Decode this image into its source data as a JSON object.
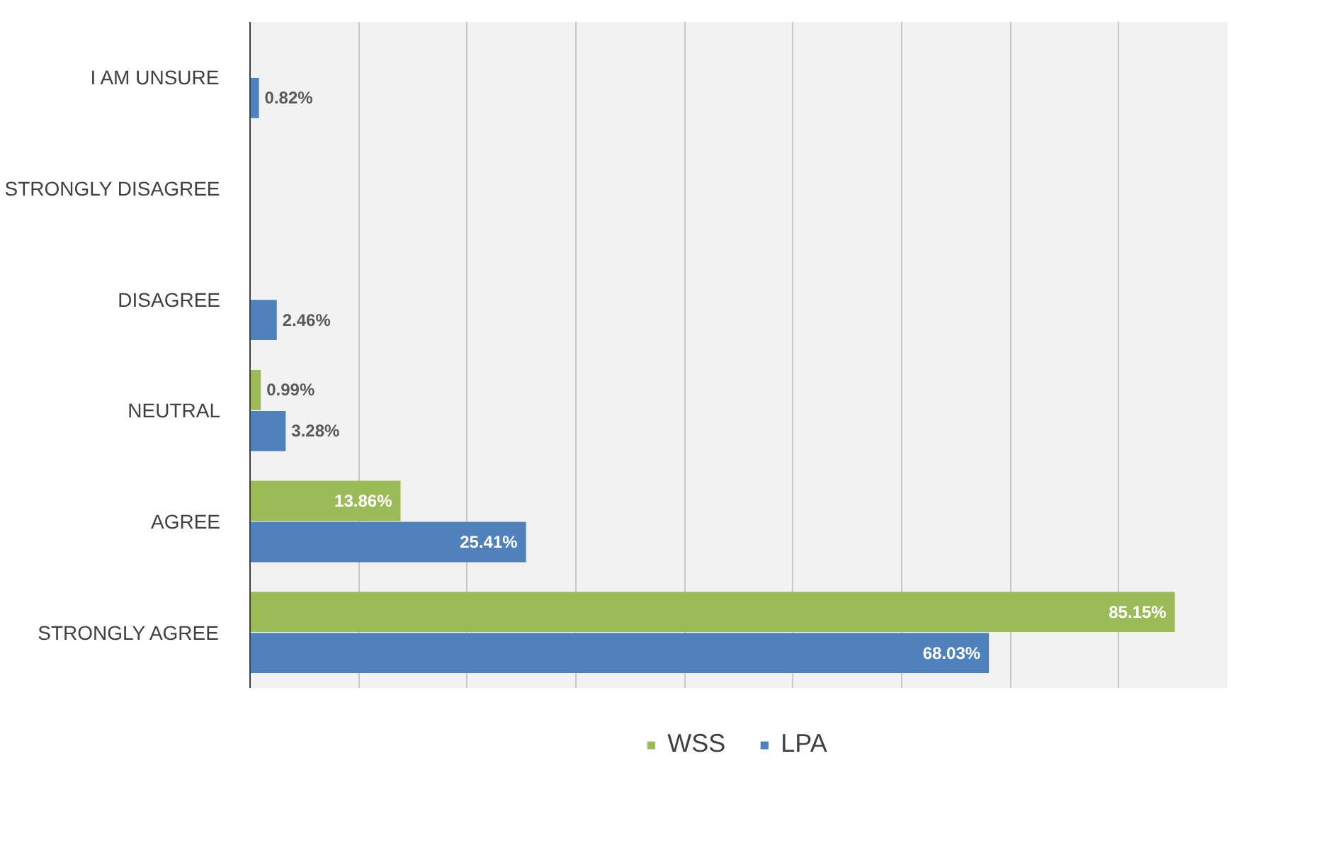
{
  "chart_data": {
    "type": "bar",
    "orientation": "horizontal",
    "categories": [
      "I AM UNSURE",
      "STRONGLY DISAGREE",
      "DISAGREE",
      "NEUTRAL",
      "AGREE",
      "STRONGLY AGREE"
    ],
    "series": [
      {
        "name": "WSS",
        "color": "#9bbb59",
        "values": [
          null,
          null,
          null,
          0.99,
          13.86,
          85.15
        ],
        "value_labels": [
          null,
          null,
          null,
          "0.99%",
          "13.86%",
          "85.15%"
        ]
      },
      {
        "name": "LPA",
        "color": "#4f81bd",
        "values": [
          0.82,
          null,
          2.46,
          3.28,
          25.41,
          68.03
        ],
        "value_labels": [
          "0.82%",
          null,
          "2.46%",
          "3.28%",
          "25.41%",
          "68.03%"
        ]
      }
    ],
    "xlim": [
      0,
      90
    ],
    "xticks": [
      {
        "value": 0,
        "label": null
      },
      {
        "value": 10,
        "label": null
      },
      {
        "value": 20,
        "label": null
      },
      {
        "value": 30,
        "label": null
      },
      {
        "value": 40,
        "label": null
      },
      {
        "value": 50,
        "label": null
      },
      {
        "value": 60,
        "label": null
      },
      {
        "value": 70,
        "label": null
      },
      {
        "value": 80,
        "label": null
      },
      {
        "value": 90,
        "label": null
      }
    ],
    "tick_labels": "y",
    "grid": "x",
    "legend": "bottom"
  }
}
